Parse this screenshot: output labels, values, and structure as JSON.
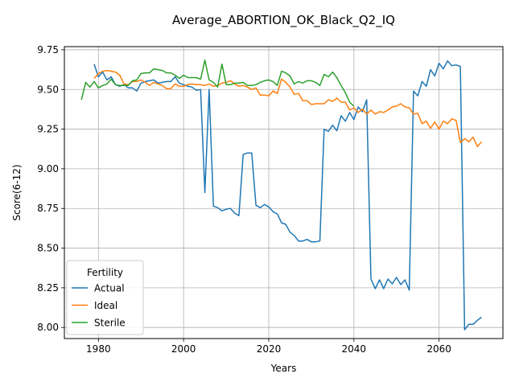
{
  "chart_data": {
    "type": "line",
    "title": "Average_ABORTION_OK_Black_Q2_IQ",
    "xlabel": "Years",
    "ylabel": "Score(6-12)",
    "xlim": [
      1972,
      2075
    ],
    "ylim": [
      7.93,
      9.77
    ],
    "xticks": [
      1980,
      2000,
      2020,
      2040,
      2060
    ],
    "yticks": [
      8.0,
      8.25,
      8.5,
      8.75,
      9.0,
      9.25,
      9.5,
      9.75
    ],
    "grid": true,
    "legend": {
      "title": "Fertility",
      "position": "lower-left"
    },
    "series": [
      {
        "name": "Actual",
        "color": "#1f77b4",
        "points": [
          [
            1979,
            9.66
          ],
          [
            1980,
            9.58
          ],
          [
            1981,
            9.61
          ],
          [
            1982,
            9.56
          ],
          [
            1983,
            9.58
          ],
          [
            1984,
            9.53
          ],
          [
            1985,
            9.52
          ],
          [
            1986,
            9.53
          ],
          [
            1987,
            9.51
          ],
          [
            1988,
            9.51
          ],
          [
            1989,
            9.49
          ],
          [
            1990,
            9.54
          ],
          [
            1991,
            9.55
          ],
          [
            1992,
            9.555
          ],
          [
            1993,
            9.56
          ],
          [
            1994,
            9.54
          ],
          [
            1995,
            9.545
          ],
          [
            1996,
            9.55
          ],
          [
            1997,
            9.55
          ],
          [
            1998,
            9.58
          ],
          [
            1999,
            9.54
          ],
          [
            2000,
            9.53
          ],
          [
            2001,
            9.52
          ],
          [
            2002,
            9.515
          ],
          [
            2003,
            9.495
          ],
          [
            2004,
            9.5
          ],
          [
            2005,
            8.85
          ],
          [
            2006,
            9.5
          ],
          [
            2007,
            8.765
          ],
          [
            2008,
            8.755
          ],
          [
            2009,
            8.735
          ],
          [
            2010,
            8.745
          ],
          [
            2011,
            8.75
          ],
          [
            2012,
            8.72
          ],
          [
            2013,
            8.705
          ],
          [
            2014,
            9.09
          ],
          [
            2015,
            9.1
          ],
          [
            2016,
            9.1
          ],
          [
            2017,
            8.77
          ],
          [
            2018,
            8.755
          ],
          [
            2019,
            8.775
          ],
          [
            2020,
            8.76
          ],
          [
            2021,
            8.73
          ],
          [
            2022,
            8.715
          ],
          [
            2023,
            8.66
          ],
          [
            2024,
            8.65
          ],
          [
            2025,
            8.6
          ],
          [
            2026,
            8.58
          ],
          [
            2027,
            8.545
          ],
          [
            2028,
            8.545
          ],
          [
            2029,
            8.555
          ],
          [
            2030,
            8.54
          ],
          [
            2031,
            8.54
          ],
          [
            2032,
            8.545
          ],
          [
            2033,
            9.25
          ],
          [
            2034,
            9.235
          ],
          [
            2035,
            9.275
          ],
          [
            2036,
            9.24
          ],
          [
            2037,
            9.335
          ],
          [
            2038,
            9.3
          ],
          [
            2039,
            9.355
          ],
          [
            2040,
            9.31
          ],
          [
            2041,
            9.39
          ],
          [
            2042,
            9.36
          ],
          [
            2043,
            9.435
          ],
          [
            2044,
            8.305
          ],
          [
            2045,
            8.245
          ],
          [
            2046,
            8.3
          ],
          [
            2047,
            8.245
          ],
          [
            2048,
            8.305
          ],
          [
            2049,
            8.275
          ],
          [
            2050,
            8.315
          ],
          [
            2051,
            8.27
          ],
          [
            2052,
            8.3
          ],
          [
            2053,
            8.235
          ],
          [
            2054,
            9.49
          ],
          [
            2055,
            9.46
          ],
          [
            2056,
            9.55
          ],
          [
            2057,
            9.52
          ],
          [
            2058,
            9.625
          ],
          [
            2059,
            9.585
          ],
          [
            2060,
            9.665
          ],
          [
            2061,
            9.63
          ],
          [
            2062,
            9.68
          ],
          [
            2063,
            9.65
          ],
          [
            2064,
            9.655
          ],
          [
            2065,
            9.645
          ],
          [
            2066,
            7.985
          ],
          [
            2067,
            8.02
          ],
          [
            2068,
            8.02
          ],
          [
            2069,
            8.045
          ],
          [
            2070,
            8.065
          ]
        ]
      },
      {
        "name": "Ideal",
        "color": "#ff7f0e",
        "points": [
          [
            1979,
            9.57
          ],
          [
            1980,
            9.6
          ],
          [
            1981,
            9.615
          ],
          [
            1982,
            9.62
          ],
          [
            1983,
            9.615
          ],
          [
            1984,
            9.61
          ],
          [
            1985,
            9.59
          ],
          [
            1986,
            9.535
          ],
          [
            1987,
            9.53
          ],
          [
            1988,
            9.55
          ],
          [
            1989,
            9.55
          ],
          [
            1990,
            9.56
          ],
          [
            1991,
            9.545
          ],
          [
            1992,
            9.525
          ],
          [
            1993,
            9.545
          ],
          [
            1994,
            9.535
          ],
          [
            1995,
            9.525
          ],
          [
            1996,
            9.505
          ],
          [
            1997,
            9.505
          ],
          [
            1998,
            9.535
          ],
          [
            1999,
            9.52
          ],
          [
            2000,
            9.52
          ],
          [
            2001,
            9.53
          ],
          [
            2002,
            9.535
          ],
          [
            2003,
            9.53
          ],
          [
            2004,
            9.53
          ],
          [
            2005,
            9.525
          ],
          [
            2006,
            9.535
          ],
          [
            2007,
            9.52
          ],
          [
            2008,
            9.525
          ],
          [
            2009,
            9.54
          ],
          [
            2010,
            9.545
          ],
          [
            2011,
            9.555
          ],
          [
            2012,
            9.535
          ],
          [
            2013,
            9.52
          ],
          [
            2014,
            9.525
          ],
          [
            2015,
            9.515
          ],
          [
            2016,
            9.5
          ],
          [
            2017,
            9.51
          ],
          [
            2018,
            9.465
          ],
          [
            2019,
            9.465
          ],
          [
            2020,
            9.46
          ],
          [
            2021,
            9.49
          ],
          [
            2022,
            9.475
          ],
          [
            2023,
            9.565
          ],
          [
            2024,
            9.545
          ],
          [
            2025,
            9.515
          ],
          [
            2026,
            9.47
          ],
          [
            2027,
            9.475
          ],
          [
            2028,
            9.43
          ],
          [
            2029,
            9.43
          ],
          [
            2030,
            9.405
          ],
          [
            2031,
            9.41
          ],
          [
            2032,
            9.41
          ],
          [
            2033,
            9.41
          ],
          [
            2034,
            9.435
          ],
          [
            2035,
            9.425
          ],
          [
            2036,
            9.445
          ],
          [
            2037,
            9.42
          ],
          [
            2038,
            9.42
          ],
          [
            2039,
            9.37
          ],
          [
            2040,
            9.385
          ],
          [
            2041,
            9.355
          ],
          [
            2042,
            9.375
          ],
          [
            2043,
            9.345
          ],
          [
            2044,
            9.37
          ],
          [
            2045,
            9.345
          ],
          [
            2046,
            9.36
          ],
          [
            2047,
            9.355
          ],
          [
            2048,
            9.37
          ],
          [
            2049,
            9.39
          ],
          [
            2050,
            9.395
          ],
          [
            2051,
            9.41
          ],
          [
            2052,
            9.39
          ],
          [
            2053,
            9.385
          ],
          [
            2054,
            9.345
          ],
          [
            2055,
            9.35
          ],
          [
            2056,
            9.285
          ],
          [
            2057,
            9.3
          ],
          [
            2058,
            9.255
          ],
          [
            2059,
            9.295
          ],
          [
            2060,
            9.25
          ],
          [
            2061,
            9.3
          ],
          [
            2062,
            9.285
          ],
          [
            2063,
            9.315
          ],
          [
            2064,
            9.305
          ],
          [
            2065,
            9.165
          ],
          [
            2066,
            9.19
          ],
          [
            2067,
            9.17
          ],
          [
            2068,
            9.2
          ],
          [
            2069,
            9.14
          ],
          [
            2070,
            9.17
          ]
        ]
      },
      {
        "name": "Sterile",
        "color": "#2ca02c",
        "points": [
          [
            1976,
            9.435
          ],
          [
            1977,
            9.545
          ],
          [
            1978,
            9.515
          ],
          [
            1979,
            9.55
          ],
          [
            1980,
            9.51
          ],
          [
            1981,
            9.525
          ],
          [
            1982,
            9.535
          ],
          [
            1983,
            9.565
          ],
          [
            1984,
            9.53
          ],
          [
            1985,
            9.525
          ],
          [
            1986,
            9.525
          ],
          [
            1987,
            9.525
          ],
          [
            1988,
            9.555
          ],
          [
            1989,
            9.56
          ],
          [
            1990,
            9.6
          ],
          [
            1991,
            9.605
          ],
          [
            1992,
            9.605
          ],
          [
            1993,
            9.63
          ],
          [
            1994,
            9.625
          ],
          [
            1995,
            9.62
          ],
          [
            1996,
            9.605
          ],
          [
            1997,
            9.605
          ],
          [
            1998,
            9.59
          ],
          [
            1999,
            9.57
          ],
          [
            2000,
            9.59
          ],
          [
            2001,
            9.575
          ],
          [
            2002,
            9.575
          ],
          [
            2003,
            9.575
          ],
          [
            2004,
            9.565
          ],
          [
            2005,
            9.685
          ],
          [
            2006,
            9.56
          ],
          [
            2007,
            9.545
          ],
          [
            2008,
            9.515
          ],
          [
            2009,
            9.66
          ],
          [
            2010,
            9.53
          ],
          [
            2011,
            9.53
          ],
          [
            2012,
            9.54
          ],
          [
            2013,
            9.54
          ],
          [
            2014,
            9.545
          ],
          [
            2015,
            9.525
          ],
          [
            2016,
            9.525
          ],
          [
            2017,
            9.53
          ],
          [
            2018,
            9.545
          ],
          [
            2019,
            9.555
          ],
          [
            2020,
            9.56
          ],
          [
            2021,
            9.55
          ],
          [
            2022,
            9.525
          ],
          [
            2023,
            9.615
          ],
          [
            2024,
            9.605
          ],
          [
            2025,
            9.585
          ],
          [
            2026,
            9.535
          ],
          [
            2027,
            9.55
          ],
          [
            2028,
            9.54
          ],
          [
            2029,
            9.555
          ],
          [
            2030,
            9.555
          ],
          [
            2031,
            9.545
          ],
          [
            2032,
            9.525
          ],
          [
            2033,
            9.595
          ],
          [
            2034,
            9.58
          ],
          [
            2035,
            9.61
          ],
          [
            2036,
            9.575
          ],
          [
            2037,
            9.525
          ],
          [
            2038,
            9.48
          ],
          [
            2039,
            9.42
          ],
          [
            2040,
            9.395
          ]
        ]
      }
    ]
  }
}
